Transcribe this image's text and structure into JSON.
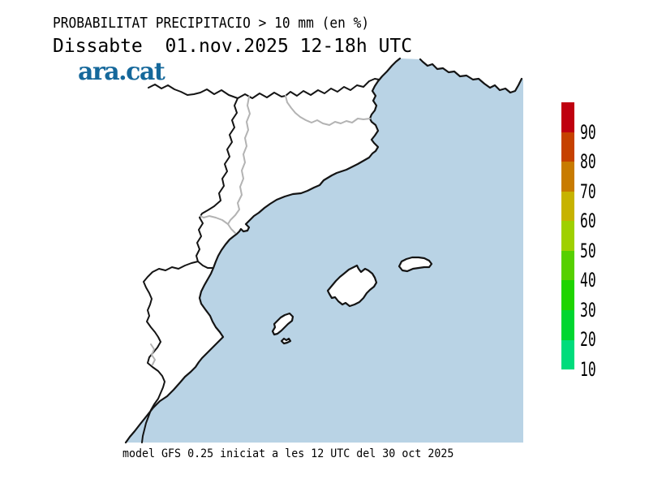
{
  "header": {
    "title": "PROBABILITAT PRECIPITACIO > 10 mm (en %)",
    "subtitle": "Dissabte  01.nov.2025 12-18h UTC",
    "logo": "ara.cat",
    "logo_color": "#15689B"
  },
  "footer": {
    "caption": "model GFS 0.25 iniciat a les 12 UTC del 30 oct 2025"
  },
  "colorbar": {
    "unit": "%",
    "tick_labels": [
      "10",
      "20",
      "30",
      "40",
      "50",
      "60",
      "70",
      "80",
      "90"
    ],
    "segments_bottom_to_top": [
      {
        "range": "10-20",
        "color": "#00DC7C"
      },
      {
        "range": "20-30",
        "color": "#00D630"
      },
      {
        "range": "30-40",
        "color": "#1FD400"
      },
      {
        "range": "40-50",
        "color": "#56D000"
      },
      {
        "range": "50-60",
        "color": "#9FD000"
      },
      {
        "range": "60-70",
        "color": "#C7B300"
      },
      {
        "range": "70-80",
        "color": "#C87B00"
      },
      {
        "range": "80-90",
        "color": "#C64100"
      },
      {
        "range": ">90",
        "color": "#BF0010"
      }
    ]
  },
  "map": {
    "sea_color": "#B9D3E5",
    "land_color": "#FFFFFF",
    "coast_color": "#141414",
    "region_border_color": "#141414",
    "province_border_color": "#B3B3B3",
    "shaded_probability_areas": "none"
  }
}
